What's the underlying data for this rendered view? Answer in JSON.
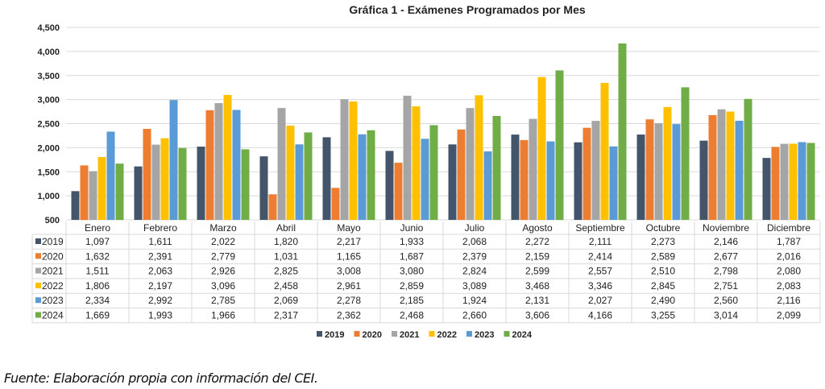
{
  "chart_data": {
    "type": "bar",
    "title": "Gráfica 1 - Exámenes Programados por Mes",
    "xlabel": "",
    "ylabel": "",
    "ylim": [
      500,
      4500
    ],
    "yticks": [
      "500",
      "1,000",
      "1,500",
      "2,000",
      "2,500",
      "3,000",
      "3,500",
      "4,000",
      "4,500"
    ],
    "grid": true,
    "legend_position": "bottom",
    "categories": [
      "Enero",
      "Febrero",
      "Marzo",
      "Abril",
      "Mayo",
      "Junio",
      "Julio",
      "Agosto",
      "Septiembre",
      "Octubre",
      "Noviembre",
      "Diciembre"
    ],
    "series": [
      {
        "name": "2019",
        "color": "#44546a",
        "values": [
          1097,
          1611,
          2022,
          1820,
          2217,
          1933,
          2068,
          2272,
          2111,
          2273,
          2146,
          1787
        ]
      },
      {
        "name": "2020",
        "color": "#ed7d31",
        "values": [
          1632,
          2391,
          2779,
          1031,
          1165,
          1687,
          2379,
          2159,
          2414,
          2589,
          2677,
          2016
        ]
      },
      {
        "name": "2021",
        "color": "#a5a5a5",
        "values": [
          1511,
          2063,
          2926,
          2825,
          3008,
          3080,
          2824,
          2599,
          2557,
          2510,
          2798,
          2080
        ]
      },
      {
        "name": "2022",
        "color": "#ffc000",
        "values": [
          1806,
          2197,
          3096,
          2458,
          2961,
          2859,
          3089,
          3468,
          3346,
          2845,
          2751,
          2083
        ]
      },
      {
        "name": "2023",
        "color": "#5b9bd5",
        "values": [
          2334,
          2992,
          2785,
          2069,
          2278,
          2185,
          1924,
          2131,
          2027,
          2490,
          2560,
          2116
        ]
      },
      {
        "name": "2024",
        "color": "#70ad47",
        "values": [
          1669,
          1993,
          1966,
          2317,
          2362,
          2468,
          2660,
          3606,
          4166,
          3255,
          3014,
          2099
        ]
      }
    ],
    "data_table": true
  },
  "caption": "Fuente: Elaboración propia con información del CEI."
}
